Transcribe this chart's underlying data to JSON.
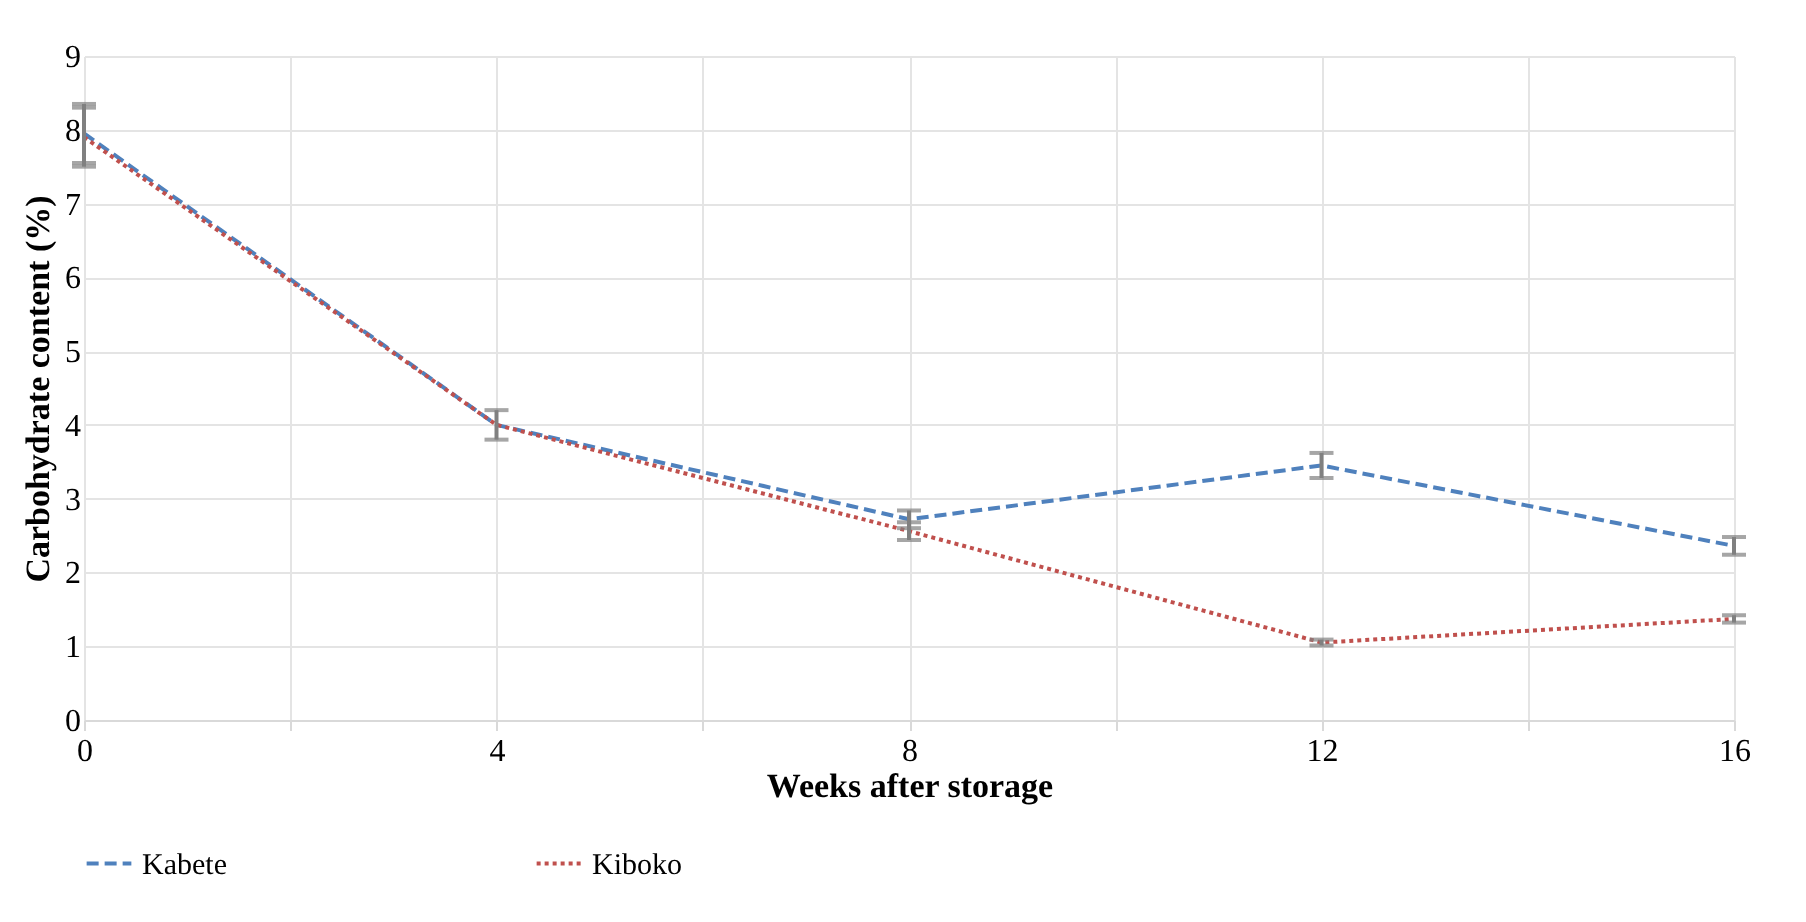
{
  "chart_data": {
    "type": "line",
    "xlabel": "Weeks after storage",
    "ylabel": "Carbohydrate content (%)",
    "x": [
      0,
      4,
      8,
      12,
      16
    ],
    "series": [
      {
        "name": "Kabete",
        "color": "#4f81bd",
        "line_style": "dashed",
        "values": [
          7.95,
          4.0,
          2.72,
          3.45,
          2.36
        ],
        "errors": [
          0.4,
          0.2,
          0.12,
          0.17,
          0.12
        ]
      },
      {
        "name": "Kiboko",
        "color": "#c0504d",
        "line_style": "dotted",
        "values": [
          7.9,
          4.0,
          2.56,
          1.05,
          1.37
        ],
        "errors": [
          0.4,
          0.2,
          0.12,
          0.04,
          0.05
        ]
      }
    ],
    "xlim": [
      0,
      16
    ],
    "xticks": [
      0,
      {
        "value": 2,
        "label": null
      },
      4,
      {
        "value": 6,
        "label": null
      },
      8,
      {
        "value": 10,
        "label": null
      },
      12,
      {
        "value": 14,
        "label": null
      },
      16
    ],
    "ylim": [
      0,
      9
    ],
    "yticks": [
      0,
      1,
      2,
      3,
      4,
      5,
      6,
      7,
      8,
      9
    ],
    "grid": true,
    "legend": "bottom",
    "marker": "none"
  }
}
